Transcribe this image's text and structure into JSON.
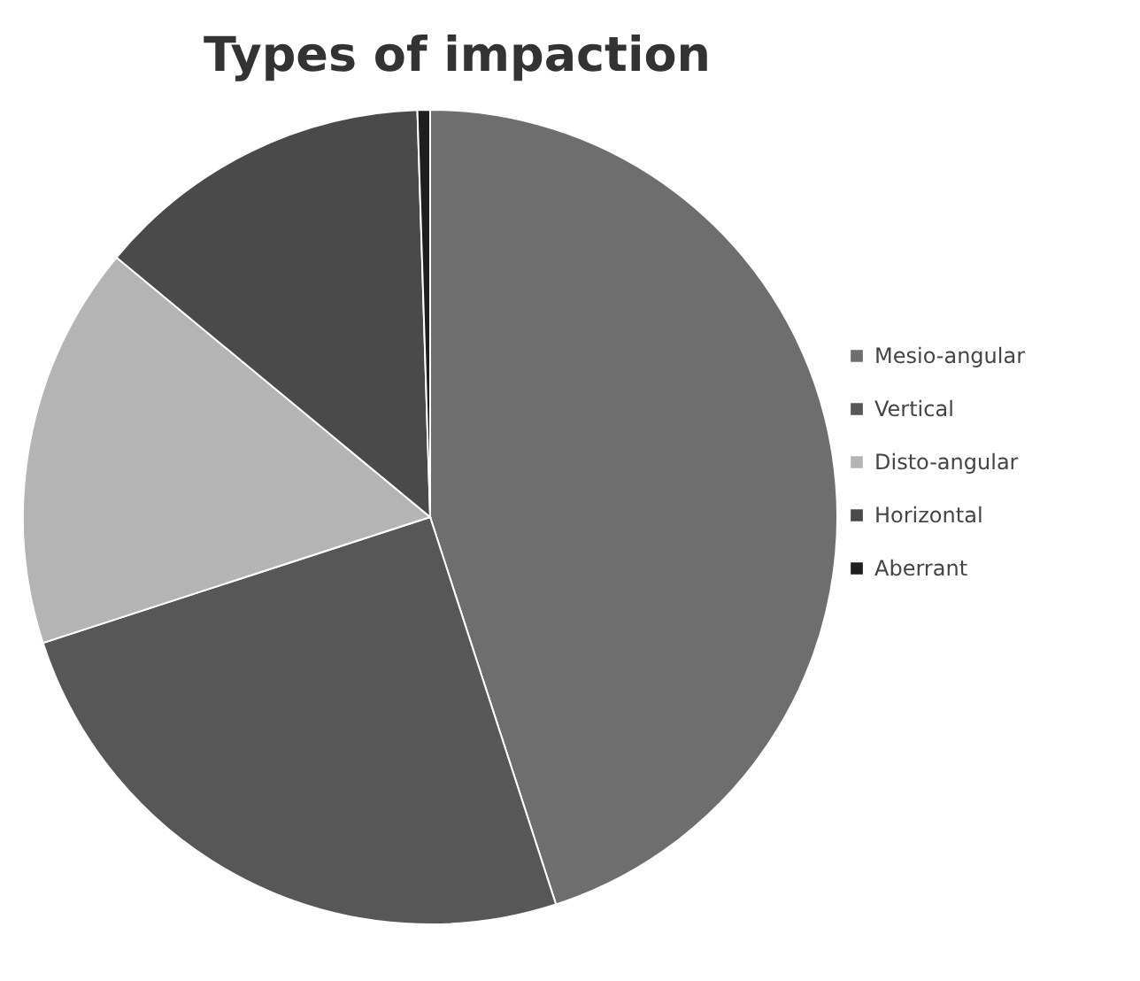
{
  "chart_data": {
    "type": "pie",
    "title": "Types of impaction",
    "categories": [
      "Mesio-angular",
      "Vertical",
      "Disto-angular",
      "Horizontal",
      "Aberrant"
    ],
    "values": [
      45,
      25,
      16,
      13.5,
      0.5
    ],
    "colors": [
      "#6e6e6e",
      "#575757",
      "#b4b4b4",
      "#4a4a4a",
      "#1e1e1e"
    ],
    "legend": "right"
  }
}
